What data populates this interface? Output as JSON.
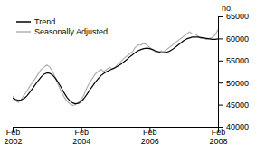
{
  "chart_data": {
    "type": "line",
    "y_label": "no.",
    "categories": [
      "Feb 2002",
      null,
      null,
      null,
      null,
      null,
      null,
      null,
      null,
      null,
      null,
      null,
      null,
      null,
      null,
      null,
      null,
      null,
      null,
      null,
      null,
      null,
      null,
      null,
      "Feb 2004",
      null,
      null,
      null,
      null,
      null,
      null,
      null,
      null,
      null,
      null,
      null,
      null,
      null,
      null,
      null,
      null,
      null,
      null,
      null,
      null,
      null,
      null,
      null,
      "Feb 2006",
      null,
      null,
      null,
      null,
      null,
      null,
      null,
      null,
      null,
      null,
      null,
      null,
      null,
      null,
      null,
      null,
      null,
      null,
      null,
      null,
      null,
      null,
      null,
      "Feb 2008"
    ],
    "series": [
      {
        "name": "Trend",
        "color": "#000000",
        "values": [
          46500,
          46200,
          46000,
          46100,
          46400,
          47000,
          47800,
          48700,
          49600,
          50500,
          51300,
          51900,
          52200,
          52100,
          51700,
          51000,
          50000,
          48900,
          47700,
          46700,
          45900,
          45400,
          45200,
          45300,
          45700,
          46400,
          47300,
          48300,
          49200,
          50100,
          50900,
          51600,
          52100,
          52500,
          52800,
          53100,
          53400,
          53800,
          54200,
          54700,
          55200,
          55800,
          56300,
          56800,
          57200,
          57500,
          57700,
          57800,
          57700,
          57500,
          57200,
          57000,
          56800,
          56800,
          56900,
          57100,
          57500,
          58000,
          58500,
          59000,
          59500,
          59900,
          60100,
          60300,
          60300,
          60300,
          60200,
          60100,
          60000,
          59900,
          59800,
          59800,
          59900
        ]
      },
      {
        "name": "Seasonally Adjusted",
        "color": "#b0b0b0",
        "values": [
          47000,
          46000,
          45500,
          46200,
          47200,
          48000,
          49200,
          50000,
          51000,
          52000,
          53000,
          53500,
          54000,
          53500,
          52500,
          51000,
          49500,
          48000,
          46800,
          45800,
          45200,
          44800,
          45000,
          45500,
          46200,
          47200,
          48800,
          50000,
          51000,
          52000,
          52500,
          53000,
          52500,
          53000,
          53500,
          53000,
          53500,
          54200,
          54800,
          55500,
          56000,
          56500,
          57000,
          58000,
          58500,
          58500,
          59000,
          58500,
          58000,
          57500,
          57000,
          56800,
          57200,
          57000,
          57500,
          58000,
          58500,
          59000,
          59500,
          60000,
          60500,
          61000,
          61500,
          61000,
          61000,
          60500,
          60000,
          60000,
          59800,
          60000,
          60200,
          60800,
          62000
        ]
      }
    ],
    "ylim": [
      40000,
      65000
    ],
    "yticks": [
      40000,
      45000,
      50000,
      55000,
      60000,
      65000
    ],
    "grid": false,
    "legend": "upper left"
  }
}
